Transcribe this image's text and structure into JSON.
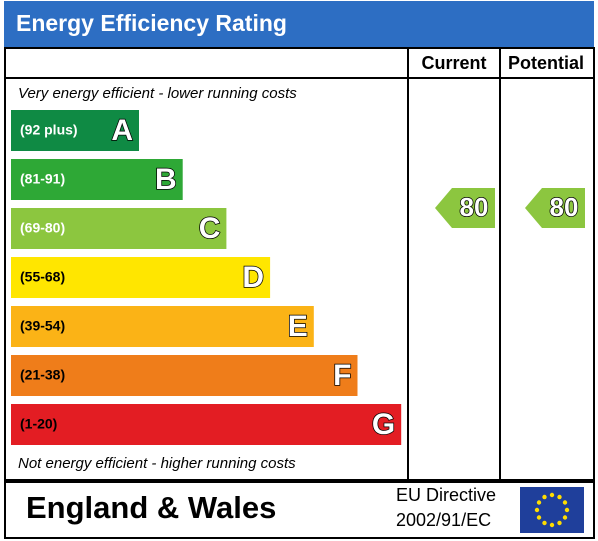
{
  "header": {
    "title": "Energy Efficiency Rating",
    "columns": [
      "Current",
      "Potential"
    ]
  },
  "top_note": "Very energy efficient - lower running costs",
  "bands": [
    {
      "range": "(92 plus)",
      "letter": "A",
      "color": "#0f8a44"
    },
    {
      "range": "(81-91)",
      "letter": "B",
      "color": "#2ea836"
    },
    {
      "range": "(69-80)",
      "letter": "C",
      "color": "#8cc63f"
    },
    {
      "range": "(55-68)",
      "letter": "D",
      "color": "#ffe600"
    },
    {
      "range": "(39-54)",
      "letter": "E",
      "color": "#fbb316"
    },
    {
      "range": "(21-38)",
      "letter": "F",
      "color": "#ef7d1a"
    },
    {
      "range": "(1-20)",
      "letter": "G",
      "color": "#e31d23"
    }
  ],
  "bottom_note": "Not energy efficient - higher running costs",
  "ratings": {
    "current": 80,
    "potential": 80
  },
  "footer": {
    "region": "England & Wales",
    "directive": [
      "EU Directive",
      "2002/91/EC"
    ]
  }
}
